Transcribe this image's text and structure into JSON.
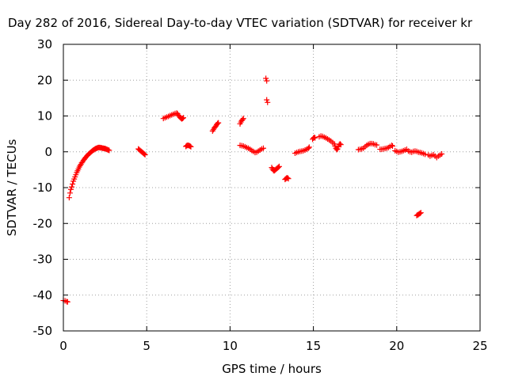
{
  "chart_data": {
    "type": "scatter",
    "title": "Day 282 of 2016, Sidereal Day-to-day VTEC variation (SDTVAR) for receiver kr",
    "xlabel": "GPS time / hours",
    "ylabel": "SDTVAR / TECUs",
    "xlim": [
      0,
      25
    ],
    "ylim": [
      -50,
      30
    ],
    "xticks": [
      0,
      5,
      10,
      15,
      20,
      25
    ],
    "yticks": [
      -50,
      -40,
      -30,
      -20,
      -10,
      0,
      10,
      20,
      30
    ],
    "grid": true,
    "marker": "+",
    "series": [
      {
        "name": "SDTVAR",
        "color": "#ff0000",
        "segments": [
          [
            [
              0.0,
              -41.5
            ],
            [
              0.1,
              -41.6
            ],
            [
              0.2,
              -41.8
            ],
            [
              0.25,
              -41.9
            ]
          ],
          [
            [
              0.35,
              -12.8
            ],
            [
              0.4,
              -11.5
            ],
            [
              0.45,
              -10.5
            ],
            [
              0.5,
              -9.8
            ],
            [
              0.55,
              -9.0
            ],
            [
              0.6,
              -8.2
            ],
            [
              0.65,
              -7.6
            ],
            [
              0.7,
              -7.0
            ],
            [
              0.75,
              -6.4
            ],
            [
              0.8,
              -5.8
            ],
            [
              0.85,
              -5.3
            ],
            [
              0.9,
              -4.8
            ],
            [
              0.95,
              -4.3
            ],
            [
              1.0,
              -3.9
            ],
            [
              1.05,
              -3.5
            ],
            [
              1.1,
              -3.1
            ],
            [
              1.15,
              -2.8
            ],
            [
              1.2,
              -2.4
            ],
            [
              1.25,
              -2.1
            ],
            [
              1.3,
              -1.8
            ],
            [
              1.35,
              -1.5
            ],
            [
              1.4,
              -1.2
            ],
            [
              1.45,
              -1.0
            ],
            [
              1.5,
              -0.7
            ],
            [
              1.55,
              -0.5
            ],
            [
              1.6,
              -0.3
            ],
            [
              1.65,
              -0.1
            ],
            [
              1.7,
              0.1
            ],
            [
              1.75,
              0.3
            ],
            [
              1.8,
              0.5
            ],
            [
              1.85,
              0.6
            ],
            [
              1.9,
              0.8
            ],
            [
              1.95,
              0.9
            ],
            [
              2.0,
              1.0
            ],
            [
              2.05,
              1.1
            ],
            [
              2.1,
              1.2
            ],
            [
              2.15,
              1.2
            ],
            [
              2.2,
              1.2
            ],
            [
              2.25,
              1.1
            ],
            [
              2.3,
              1.1
            ],
            [
              2.35,
              1.0
            ],
            [
              2.4,
              1.0
            ],
            [
              2.45,
              0.9
            ],
            [
              2.5,
              0.9
            ],
            [
              2.55,
              0.8
            ],
            [
              2.6,
              0.7
            ],
            [
              2.65,
              0.6
            ],
            [
              2.7,
              0.5
            ],
            [
              2.75,
              0.4
            ]
          ],
          [
            [
              4.5,
              0.8
            ],
            [
              4.55,
              0.6
            ],
            [
              4.6,
              0.4
            ],
            [
              4.65,
              0.2
            ],
            [
              4.7,
              0.0
            ],
            [
              4.75,
              -0.2
            ],
            [
              4.8,
              -0.4
            ],
            [
              4.85,
              -0.6
            ],
            [
              4.9,
              -0.8
            ]
          ],
          [
            [
              6.0,
              9.3
            ],
            [
              6.1,
              9.5
            ],
            [
              6.2,
              9.7
            ],
            [
              6.3,
              9.9
            ],
            [
              6.4,
              10.1
            ],
            [
              6.5,
              10.3
            ],
            [
              6.6,
              10.5
            ],
            [
              6.7,
              10.7
            ],
            [
              6.8,
              10.8
            ],
            [
              6.85,
              10.6
            ],
            [
              6.9,
              10.2
            ],
            [
              6.95,
              9.9
            ],
            [
              7.0,
              9.6
            ],
            [
              7.05,
              9.4
            ],
            [
              7.1,
              9.2
            ],
            [
              7.15,
              9.3
            ],
            [
              7.2,
              9.5
            ]
          ],
          [
            [
              7.35,
              1.5
            ],
            [
              7.4,
              1.7
            ],
            [
              7.45,
              1.8
            ],
            [
              7.5,
              1.8
            ],
            [
              7.55,
              1.7
            ],
            [
              7.6,
              1.6
            ],
            [
              7.65,
              1.4
            ]
          ],
          [
            [
              8.95,
              5.8
            ],
            [
              9.0,
              6.2
            ],
            [
              9.05,
              6.6
            ],
            [
              9.1,
              6.9
            ],
            [
              9.15,
              7.2
            ],
            [
              9.2,
              7.6
            ],
            [
              9.25,
              7.9
            ],
            [
              9.3,
              8.1
            ]
          ],
          [
            [
              10.6,
              7.8
            ],
            [
              10.65,
              8.3
            ],
            [
              10.7,
              8.7
            ],
            [
              10.75,
              9.0
            ],
            [
              10.8,
              9.3
            ]
          ],
          [
            [
              10.6,
              1.8
            ],
            [
              10.7,
              1.7
            ],
            [
              10.8,
              1.6
            ],
            [
              10.9,
              1.4
            ],
            [
              11.0,
              1.2
            ],
            [
              11.1,
              1.0
            ],
            [
              11.2,
              0.7
            ],
            [
              11.3,
              0.4
            ],
            [
              11.4,
              0.1
            ],
            [
              11.5,
              -0.2
            ],
            [
              11.6,
              -0.1
            ],
            [
              11.7,
              0.2
            ],
            [
              11.8,
              0.5
            ],
            [
              11.9,
              0.8
            ],
            [
              12.0,
              1.0
            ]
          ],
          [
            [
              12.15,
              20.5
            ],
            [
              12.2,
              19.8
            ],
            [
              12.2,
              14.5
            ],
            [
              12.25,
              13.8
            ]
          ],
          [
            [
              12.5,
              -4.4
            ],
            [
              12.55,
              -4.8
            ],
            [
              12.6,
              -5.2
            ],
            [
              12.65,
              -5.3
            ],
            [
              12.7,
              -5.1
            ],
            [
              12.75,
              -4.9
            ],
            [
              12.8,
              -4.7
            ],
            [
              12.85,
              -4.5
            ],
            [
              12.9,
              -4.3
            ],
            [
              12.95,
              -4.1
            ]
          ],
          [
            [
              13.3,
              -7.7
            ],
            [
              13.35,
              -7.5
            ],
            [
              13.4,
              -7.3
            ],
            [
              13.45,
              -7.3
            ],
            [
              13.5,
              -7.5
            ]
          ],
          [
            [
              13.9,
              -0.4
            ],
            [
              14.0,
              -0.2
            ],
            [
              14.1,
              0.0
            ],
            [
              14.2,
              0.1
            ],
            [
              14.3,
              0.2
            ],
            [
              14.4,
              0.3
            ],
            [
              14.5,
              0.5
            ],
            [
              14.6,
              0.7
            ],
            [
              14.7,
              1.0
            ],
            [
              14.75,
              1.3
            ]
          ],
          [
            [
              14.95,
              3.5
            ],
            [
              15.0,
              3.8
            ],
            [
              15.05,
              4.0
            ],
            [
              15.1,
              3.9
            ]
          ],
          [
            [
              15.35,
              4.2
            ],
            [
              15.45,
              4.4
            ],
            [
              15.55,
              4.3
            ],
            [
              15.65,
              4.1
            ],
            [
              15.75,
              3.9
            ],
            [
              15.85,
              3.6
            ],
            [
              15.95,
              3.3
            ],
            [
              16.05,
              3.0
            ],
            [
              16.15,
              2.6
            ],
            [
              16.25,
              2.2
            ],
            [
              16.3,
              1.6
            ],
            [
              16.35,
              1.0
            ],
            [
              16.4,
              0.6
            ],
            [
              16.45,
              0.8
            ],
            [
              16.5,
              1.5
            ],
            [
              16.55,
              2.0
            ],
            [
              16.6,
              2.2
            ],
            [
              16.65,
              2.0
            ]
          ],
          [
            [
              17.7,
              0.6
            ],
            [
              17.8,
              0.7
            ],
            [
              17.9,
              0.8
            ],
            [
              18.0,
              1.0
            ],
            [
              18.1,
              1.4
            ],
            [
              18.2,
              1.8
            ],
            [
              18.3,
              2.1
            ],
            [
              18.4,
              2.3
            ],
            [
              18.5,
              2.3
            ],
            [
              18.6,
              2.2
            ],
            [
              18.7,
              2.0
            ],
            [
              18.8,
              1.9
            ]
          ],
          [
            [
              19.0,
              0.7
            ],
            [
              19.1,
              0.7
            ],
            [
              19.2,
              0.8
            ],
            [
              19.3,
              0.9
            ],
            [
              19.4,
              1.0
            ],
            [
              19.5,
              1.2
            ],
            [
              19.6,
              1.5
            ],
            [
              19.7,
              1.8
            ],
            [
              19.75,
              1.6
            ]
          ],
          [
            [
              19.9,
              0.3
            ],
            [
              20.0,
              0.1
            ],
            [
              20.1,
              -0.1
            ],
            [
              20.2,
              0.0
            ],
            [
              20.3,
              0.1
            ],
            [
              20.4,
              0.3
            ],
            [
              20.5,
              0.5
            ],
            [
              20.6,
              0.7
            ],
            [
              20.7,
              0.2
            ],
            [
              20.8,
              0.0
            ],
            [
              20.9,
              -0.1
            ],
            [
              21.0,
              0.1
            ],
            [
              21.1,
              0.2
            ],
            [
              21.2,
              0.1
            ],
            [
              21.3,
              -0.1
            ],
            [
              21.4,
              -0.2
            ],
            [
              21.5,
              -0.3
            ],
            [
              21.6,
              -0.5
            ],
            [
              21.7,
              -0.7
            ]
          ],
          [
            [
              21.2,
              -17.8
            ],
            [
              21.25,
              -17.6
            ],
            [
              21.3,
              -17.5
            ],
            [
              21.35,
              -17.3
            ],
            [
              21.4,
              -17.2
            ],
            [
              21.45,
              -17.0
            ]
          ],
          [
            [
              21.9,
              -0.9
            ],
            [
              22.0,
              -1.2
            ],
            [
              22.1,
              -1.0
            ],
            [
              22.2,
              -0.8
            ],
            [
              22.3,
              -1.2
            ],
            [
              22.4,
              -1.6
            ],
            [
              22.5,
              -1.2
            ],
            [
              22.6,
              -0.9
            ],
            [
              22.7,
              -0.6
            ]
          ]
        ]
      }
    ]
  }
}
